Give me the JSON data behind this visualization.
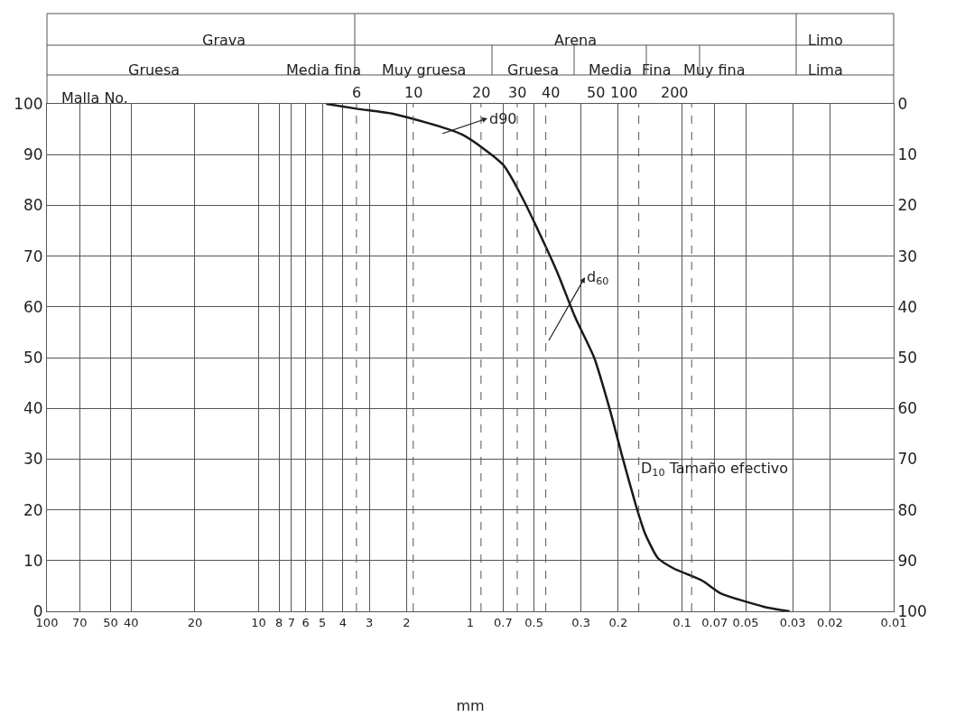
{
  "chart_data": {
    "type": "line",
    "xlabel": "mm",
    "series": [
      {
        "color": "#1a1a1a",
        "x": [
          4.8,
          3.4,
          2.3,
          1.1,
          0.7,
          0.56,
          0.49,
          0.39,
          0.32,
          0.26,
          0.22,
          0.19,
          0.16,
          0.15,
          0.13,
          0.11,
          0.08,
          0.066,
          0.041,
          0.031
        ],
        "values": [
          100,
          99,
          98,
          94,
          88,
          81,
          76,
          67,
          58,
          50,
          40,
          30,
          19,
          15.5,
          10.5,
          8.5,
          6,
          3.6,
          0.9,
          0
        ]
      }
    ],
    "log": "x",
    "xlim": [
      100,
      0.01
    ],
    "xticks": [
      100,
      70,
      50,
      40,
      20,
      10,
      8,
      7,
      6,
      5,
      4,
      3,
      2,
      1,
      0.7,
      0.5,
      0.3,
      0.2,
      0.1,
      0.07,
      0.05,
      0.03,
      0.02,
      0.01
    ],
    "ylim": [
      0,
      100
    ],
    "yticks": [
      0,
      10,
      20,
      30,
      40,
      50,
      60,
      70,
      80,
      90,
      100
    ],
    "y2lim": [
      100,
      0
    ],
    "y2ticks": [
      0,
      10,
      20,
      30,
      40,
      50,
      60,
      70,
      80,
      90,
      100
    ],
    "grid": true,
    "ref_lines": [
      {
        "axis": "x",
        "value": 3.45,
        "color": "#555555",
        "line_style": "dashed"
      },
      {
        "axis": "x",
        "value": 1.86,
        "color": "#555555",
        "line_style": "dashed"
      },
      {
        "axis": "x",
        "value": 0.89,
        "color": "#555555",
        "line_style": "dashed"
      },
      {
        "axis": "x",
        "value": 0.6,
        "color": "#555555",
        "line_style": "dashed"
      },
      {
        "axis": "x",
        "value": 0.44,
        "color": "#555555",
        "line_style": "dashed"
      },
      {
        "axis": "x",
        "value": 0.16,
        "color": "#555555",
        "line_style": "dashed"
      },
      {
        "axis": "x",
        "value": 0.09,
        "color": "#555555",
        "line_style": "dashed"
      }
    ],
    "annotations": [
      "Grava",
      "Arena",
      "Limo",
      "Gruesa",
      "Media fina",
      "Muy gruesa",
      "Gruesa",
      "Media",
      "Fina",
      "Muy fina",
      "Lima",
      "Malla No.",
      "d90",
      "d$_{60}$",
      "D$_{10}$ Tamaño efectivo",
      "6",
      "10",
      "20",
      "30",
      "40",
      "50",
      "100",
      "200"
    ]
  }
}
